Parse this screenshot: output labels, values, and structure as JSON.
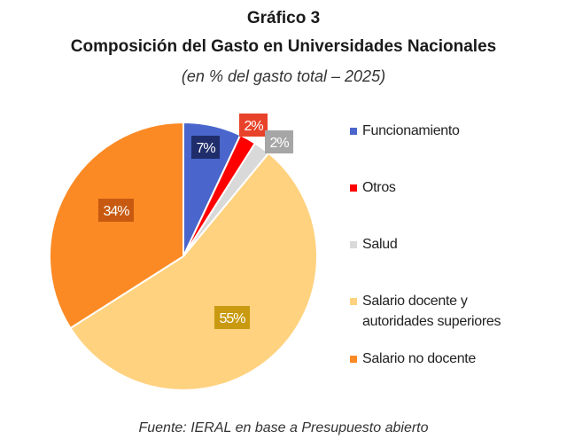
{
  "chart_data": {
    "type": "pie",
    "title": "Gráfico 3",
    "subtitle": "Composición del Gasto en Universidades Nacionales",
    "note": "(en % del gasto total – 2025)",
    "source": "Fuente: IERAL en base a Presupuesto abierto",
    "legend_placement": "right",
    "slices": [
      {
        "name": "Funcionamiento",
        "value": 7,
        "label": "7%",
        "color": "#4a66cc",
        "label_bg": "#1f2d6b"
      },
      {
        "name": "Otros",
        "value": 2,
        "label": "2%",
        "color": "#ff0000",
        "label_bg": "#e8432a"
      },
      {
        "name": "Salud",
        "value": 2,
        "label": "2%",
        "color": "#d9d9d9",
        "label_bg": "#a6a6a6"
      },
      {
        "name": "Salario docente y autoridades superiores",
        "value": 55,
        "label": "55%",
        "color": "#ffd27f",
        "label_bg": "#c99a10"
      },
      {
        "name": "Salario no docente",
        "value": 34,
        "label": "34%",
        "color": "#fb8a24",
        "label_bg": "#c75a10"
      }
    ],
    "legend": [
      "Funcionamiento",
      "Otros",
      "Salud",
      "Salario docente y\nautoridades superiores",
      "Salario no docente"
    ]
  }
}
